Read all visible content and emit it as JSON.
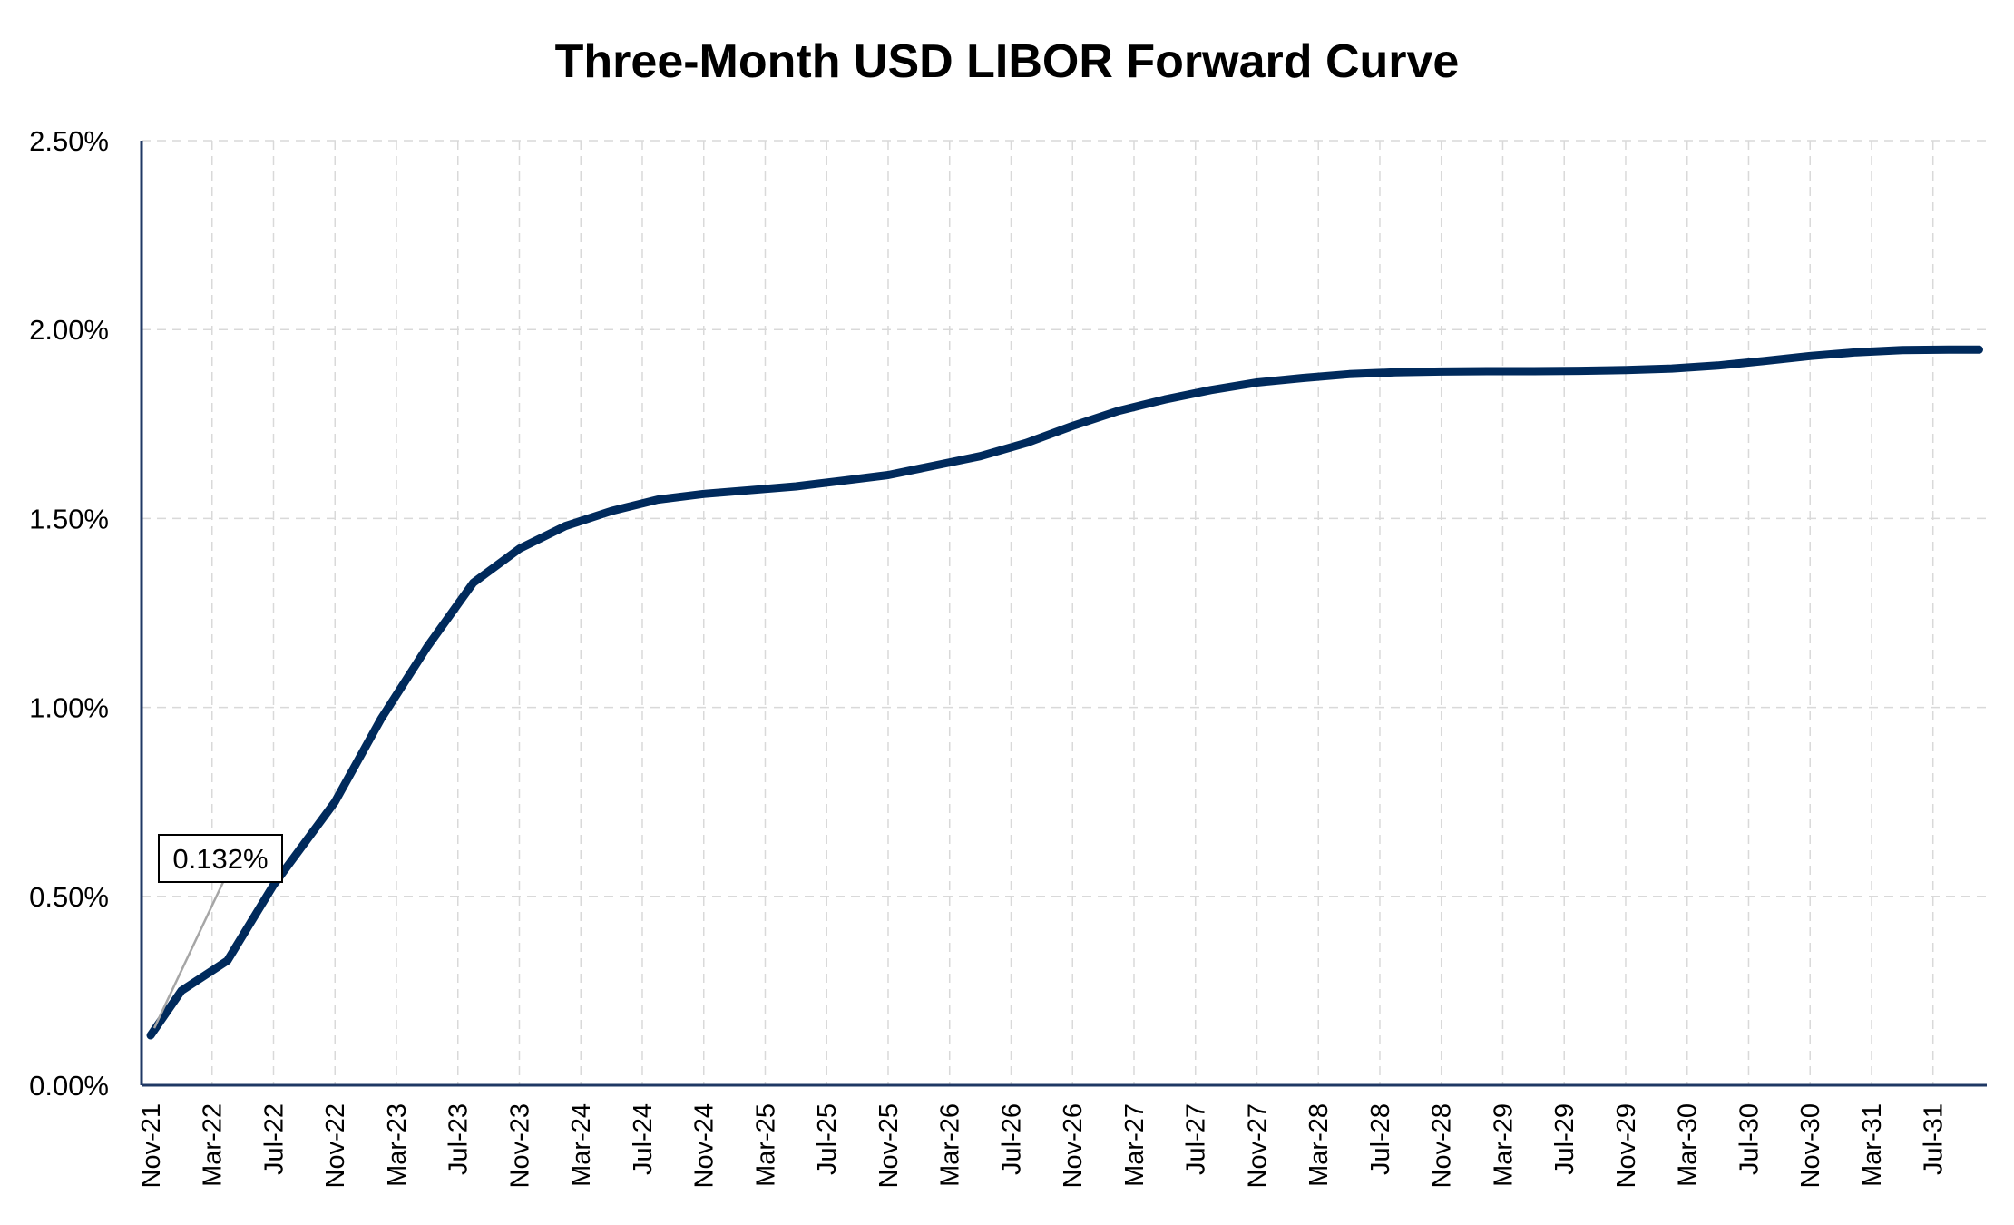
{
  "chart_data": {
    "type": "line",
    "title": "Three-Month USD LIBOR Forward Curve",
    "xlabel": "",
    "ylabel": "",
    "ylim": [
      0,
      2.5
    ],
    "yticks": [
      "0.00%",
      "0.50%",
      "1.00%",
      "1.50%",
      "2.00%",
      "2.50%"
    ],
    "grid": true,
    "legend": "none",
    "categories": [
      "Nov-21",
      "Mar-22",
      "Jul-22",
      "Nov-22",
      "Mar-23",
      "Jul-23",
      "Nov-23",
      "Mar-24",
      "Jul-24",
      "Nov-24",
      "Mar-25",
      "Jul-25",
      "Nov-25",
      "Mar-26",
      "Jul-26",
      "Nov-26",
      "Mar-27",
      "Jul-27",
      "Nov-27",
      "Mar-28",
      "Jul-28",
      "Nov-28",
      "Mar-29",
      "Jul-29",
      "Nov-29",
      "Mar-30",
      "Jul-30",
      "Nov-30",
      "Mar-31",
      "Jul-31"
    ],
    "series": [
      {
        "name": "",
        "color": "#002a5c",
        "points": [
          {
            "x": "Nov-21",
            "y": 0.132
          },
          {
            "x": "Jan-22",
            "y": 0.25
          },
          {
            "x": "Apr-22",
            "y": 0.33
          },
          {
            "x": "Jul-22",
            "y": 0.53
          },
          {
            "x": "Nov-22",
            "y": 0.75
          },
          {
            "x": "Feb-23",
            "y": 0.97
          },
          {
            "x": "May-23",
            "y": 1.16
          },
          {
            "x": "Aug-23",
            "y": 1.33
          },
          {
            "x": "Nov-23",
            "y": 1.42
          },
          {
            "x": "Feb-24",
            "y": 1.48
          },
          {
            "x": "May-24",
            "y": 1.52
          },
          {
            "x": "Aug-24",
            "y": 1.55
          },
          {
            "x": "Nov-24",
            "y": 1.565
          },
          {
            "x": "Feb-25",
            "y": 1.575
          },
          {
            "x": "May-25",
            "y": 1.585
          },
          {
            "x": "Aug-25",
            "y": 1.6
          },
          {
            "x": "Nov-25",
            "y": 1.615
          },
          {
            "x": "Feb-26",
            "y": 1.64
          },
          {
            "x": "May-26",
            "y": 1.665
          },
          {
            "x": "Aug-26",
            "y": 1.7
          },
          {
            "x": "Nov-26",
            "y": 1.745
          },
          {
            "x": "Feb-27",
            "y": 1.785
          },
          {
            "x": "May-27",
            "y": 1.815
          },
          {
            "x": "Aug-27",
            "y": 1.84
          },
          {
            "x": "Nov-27",
            "y": 1.86
          },
          {
            "x": "Feb-28",
            "y": 1.872
          },
          {
            "x": "May-28",
            "y": 1.882
          },
          {
            "x": "Aug-28",
            "y": 1.887
          },
          {
            "x": "Nov-28",
            "y": 1.889
          },
          {
            "x": "Feb-29",
            "y": 1.89
          },
          {
            "x": "May-29",
            "y": 1.89
          },
          {
            "x": "Aug-29",
            "y": 1.891
          },
          {
            "x": "Nov-29",
            "y": 1.893
          },
          {
            "x": "Feb-30",
            "y": 1.897
          },
          {
            "x": "May-30",
            "y": 1.905
          },
          {
            "x": "Aug-30",
            "y": 1.917
          },
          {
            "x": "Nov-30",
            "y": 1.93
          },
          {
            "x": "Feb-31",
            "y": 1.94
          },
          {
            "x": "May-31",
            "y": 1.946
          },
          {
            "x": "Aug-31",
            "y": 1.947
          },
          {
            "x": "Oct-31",
            "y": 1.947
          }
        ]
      }
    ],
    "annotations": [
      {
        "label": "0.132%",
        "x": "Nov-21",
        "y": 0.132
      }
    ]
  }
}
